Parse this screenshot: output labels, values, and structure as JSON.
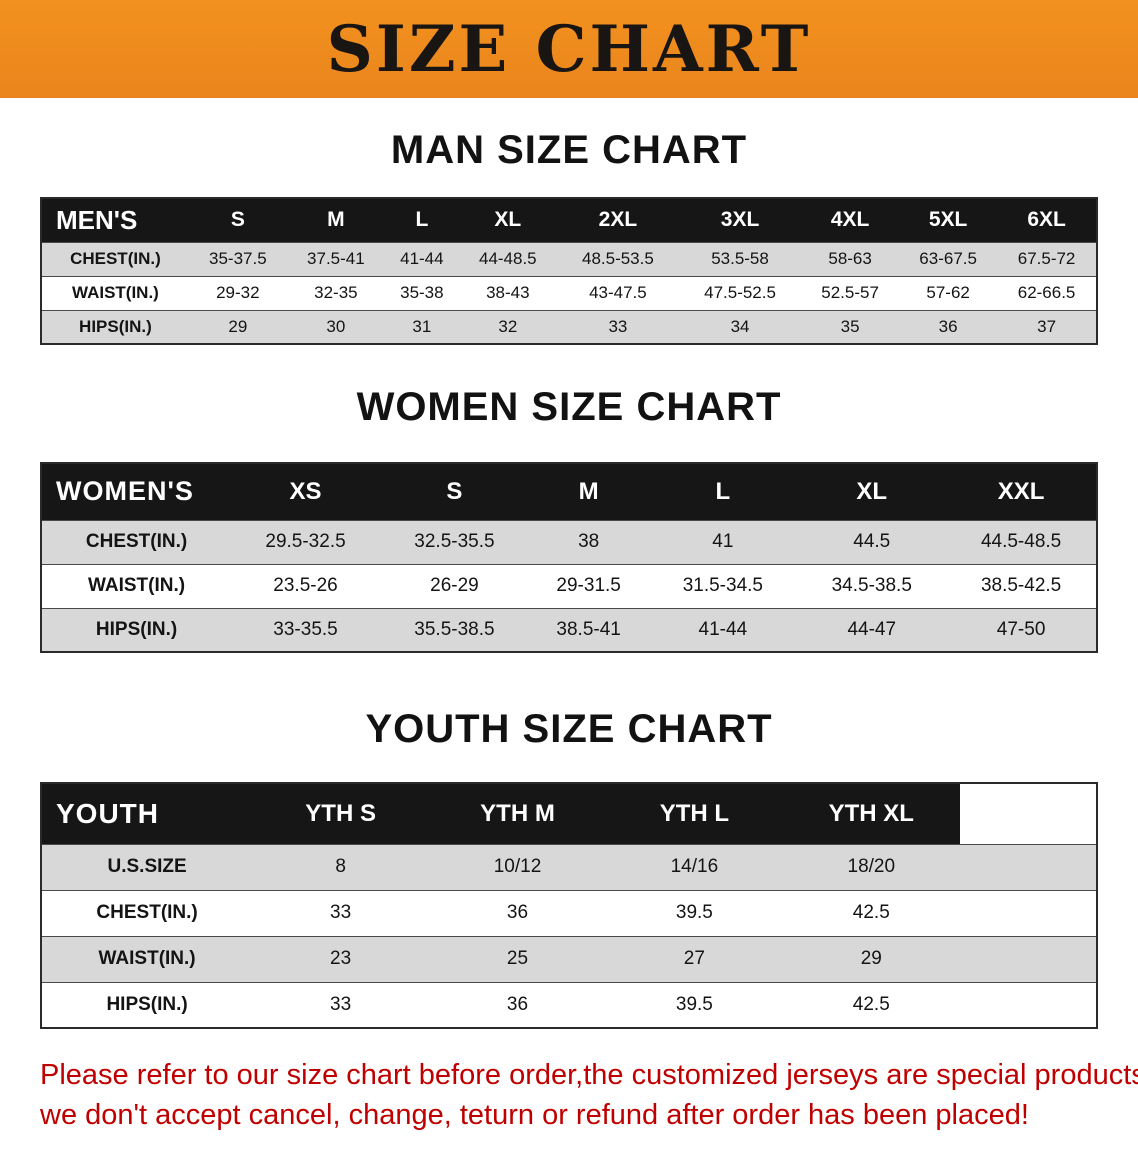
{
  "banner": {
    "title": "SIZE CHART",
    "bg_color": "#ee8a1f",
    "text_color": "#181512"
  },
  "sections": [
    {
      "id": "men",
      "heading": "MAN SIZE CHART",
      "table": {
        "header": [
          "MEN'S",
          "S",
          "M",
          "L",
          "XL",
          "2XL",
          "3XL",
          "4XL",
          "5XL",
          "6XL"
        ],
        "rows": [
          [
            "CHEST(IN.)",
            "35-37.5",
            "37.5-41",
            "41-44",
            "44-48.5",
            "48.5-53.5",
            "53.5-58",
            "58-63",
            "63-67.5",
            "67.5-72"
          ],
          [
            "WAIST(IN.)",
            "29-32",
            "32-35",
            "35-38",
            "38-43",
            "43-47.5",
            "47.5-52.5",
            "52.5-57",
            "57-62",
            "62-66.5"
          ],
          [
            "HIPS(IN.)",
            "29",
            "30",
            "31",
            "32",
            "33",
            "34",
            "35",
            "36",
            "37"
          ]
        ]
      }
    },
    {
      "id": "women",
      "heading": "WOMEN SIZE CHART",
      "table": {
        "header": [
          "WOMEN'S",
          "XS",
          "S",
          "M",
          "L",
          "XL",
          "XXL"
        ],
        "rows": [
          [
            "CHEST(IN.)",
            "29.5-32.5",
            "32.5-35.5",
            "38",
            "41",
            "44.5",
            "44.5-48.5"
          ],
          [
            "WAIST(IN.)",
            "23.5-26",
            "26-29",
            "29-31.5",
            "31.5-34.5",
            "34.5-38.5",
            "38.5-42.5"
          ],
          [
            "HIPS(IN.)",
            "33-35.5",
            "35.5-38.5",
            "38.5-41",
            "41-44",
            "44-47",
            "47-50"
          ]
        ]
      }
    },
    {
      "id": "youth",
      "heading": "YOUTH SIZE CHART",
      "table": {
        "header": [
          "YOUTH",
          "YTH S",
          "YTH M",
          "YTH L",
          "YTH XL"
        ],
        "rows": [
          [
            "U.S.SIZE",
            "8",
            "10/12",
            "14/16",
            "18/20"
          ],
          [
            "CHEST(IN.)",
            "33",
            "36",
            "39.5",
            "42.5"
          ],
          [
            "WAIST(IN.)",
            "23",
            "25",
            "27",
            "29"
          ],
          [
            "HIPS(IN.)",
            "33",
            "36",
            "39.5",
            "42.5"
          ]
        ]
      }
    }
  ],
  "disclaimer": {
    "color": "#c00000",
    "lines": [
      "Please refer to our size chart before order,the customized jerseys are special products,",
      "we don't accept cancel, change, teturn or refund after order has been placed!"
    ]
  },
  "colors": {
    "table_header_bg": "#161616",
    "table_header_text": "#ffffff",
    "row_alt_bg": "#d8d8d8",
    "table_border": "#2a2a2a"
  }
}
